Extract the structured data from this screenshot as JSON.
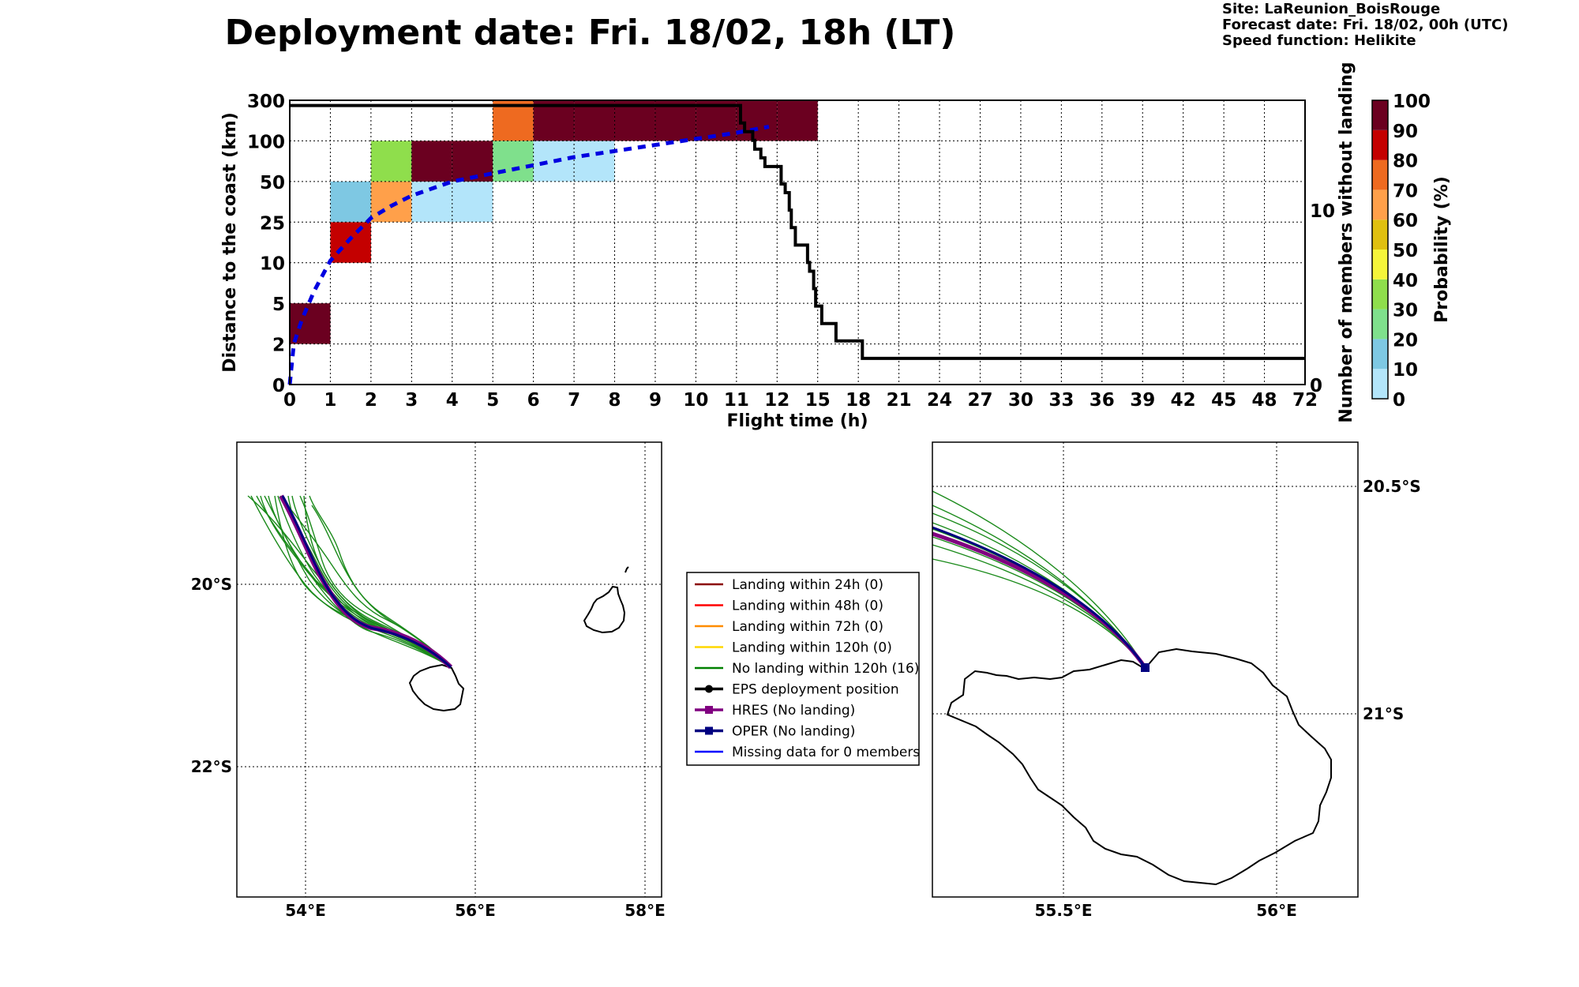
{
  "title": "Deployment date: Fri. 18/02, 18h (LT)",
  "site_info": {
    "site": "Site: LaReunion_BoisRouge",
    "forecast": "Forecast date: Fri. 18/02, 00h (UTC)",
    "speed": "Speed function: Helikite"
  },
  "chart_data": [
    {
      "type": "heatmap",
      "xlabel": "Flight time (h)",
      "ylabel": "Distance to the coast (km)",
      "y2label": "Number of members without landing",
      "x_ticks": [
        "0",
        "1",
        "2",
        "3",
        "4",
        "5",
        "6",
        "7",
        "8",
        "9",
        "10",
        "11",
        "12",
        "15",
        "18",
        "21",
        "24",
        "27",
        "30",
        "33",
        "36",
        "39",
        "42",
        "45",
        "48",
        "72"
      ],
      "y_ticks": [
        "0",
        "2",
        "5",
        "10",
        "25",
        "50",
        "100",
        "300"
      ],
      "y2_ticks": [
        {
          "label": "0",
          "value": 0
        },
        {
          "label": "10",
          "value": 10
        }
      ],
      "y2lim": [
        0,
        16.3
      ],
      "colorbar": {
        "label": "Probability (%)",
        "ticks": [
          "0",
          "10",
          "20",
          "30",
          "40",
          "50",
          "60",
          "70",
          "80",
          "90",
          "100"
        ],
        "colors": [
          "#b3e5fa",
          "#7ec8e3",
          "#7fe08c",
          "#8fde4c",
          "#f5f53a",
          "#e0c010",
          "#ffa04a",
          "#ee6a20",
          "#c40000",
          "#6b0020"
        ]
      },
      "cells": [
        {
          "x": 0,
          "y": 1,
          "color": "#6b0020"
        },
        {
          "x": 1,
          "y": 3,
          "color": "#c40000"
        },
        {
          "x": 1,
          "y": 4,
          "color": "#7ec8e3"
        },
        {
          "x": 2,
          "y": 4,
          "color": "#ffa04a"
        },
        {
          "x": 2,
          "y": 5,
          "color": "#8fde4c"
        },
        {
          "x": 3,
          "y": 4,
          "color": "#b3e5fa"
        },
        {
          "x": 4,
          "y": 4,
          "color": "#b3e5fa"
        },
        {
          "x": 3,
          "y": 5,
          "color": "#6b0020"
        },
        {
          "x": 4,
          "y": 5,
          "color": "#6b0020"
        },
        {
          "x": 5,
          "y": 5,
          "color": "#7fe08c"
        },
        {
          "x": 6,
          "y": 5,
          "color": "#b3e5fa"
        },
        {
          "x": 7,
          "y": 5,
          "color": "#b3e5fa"
        },
        {
          "x": 5,
          "y": 6,
          "color": "#ee6a20"
        },
        {
          "x": 6,
          "y": 6,
          "color": "#6b0020"
        },
        {
          "x": 7,
          "y": 6,
          "color": "#6b0020"
        },
        {
          "x": 8,
          "y": 6,
          "color": "#6b0020"
        },
        {
          "x": 9,
          "y": 6,
          "color": "#6b0020"
        },
        {
          "x": 10,
          "y": 6,
          "color": "#6b0020"
        },
        {
          "x": 11,
          "y": 6,
          "color": "#6b0020"
        },
        {
          "x": 12,
          "y": 6,
          "color": "#6b0020"
        }
      ],
      "members_without_landing": [
        [
          0,
          16
        ],
        [
          11,
          16
        ],
        [
          11.1,
          15
        ],
        [
          11.2,
          14.5
        ],
        [
          11.4,
          14
        ],
        [
          11.45,
          13.5
        ],
        [
          11.6,
          13
        ],
        [
          11.7,
          12.5
        ],
        [
          12.0,
          12.5
        ],
        [
          12.1,
          11.5
        ],
        [
          12.2,
          11
        ],
        [
          12.3,
          10
        ],
        [
          12.35,
          9
        ],
        [
          12.45,
          8
        ],
        [
          12.7,
          8
        ],
        [
          12.75,
          7
        ],
        [
          12.8,
          6.5
        ],
        [
          12.9,
          5.5
        ],
        [
          12.95,
          4.5
        ],
        [
          13.1,
          3.5
        ],
        [
          13.4,
          3.5
        ],
        [
          13.45,
          2.5
        ],
        [
          14.0,
          2.5
        ],
        [
          14.1,
          1.5
        ],
        [
          25,
          1.5
        ]
      ],
      "mean_distance": [
        [
          0,
          0
        ],
        [
          0.05,
          0.5
        ],
        [
          0.1,
          1
        ],
        [
          0.3,
          1.6
        ],
        [
          0.6,
          2.3
        ],
        [
          1,
          3.05
        ],
        [
          1.5,
          3.6
        ],
        [
          2,
          4.1
        ],
        [
          2.5,
          4.4
        ],
        [
          3,
          4.65
        ],
        [
          4,
          5.0
        ],
        [
          5,
          5.2
        ],
        [
          6,
          5.4
        ],
        [
          7,
          5.6
        ],
        [
          8,
          5.75
        ],
        [
          9,
          5.9
        ],
        [
          10,
          6.05
        ],
        [
          11,
          6.2
        ],
        [
          11.8,
          6.35
        ]
      ]
    }
  ],
  "legend": [
    {
      "label": "Landing within 24h (0)",
      "color": "#8b0000",
      "marker": "none"
    },
    {
      "label": "Landing within 48h (0)",
      "color": "#ff0000",
      "marker": "none"
    },
    {
      "label": "Landing within 72h (0)",
      "color": "#ff8c00",
      "marker": "none"
    },
    {
      "label": "Landing within 120h (0)",
      "color": "#ffd700",
      "marker": "none"
    },
    {
      "label": "No landing within 120h (16)",
      "color": "#008000",
      "marker": "none"
    },
    {
      "label": "EPS deployment position",
      "color": "#000000",
      "marker": "circle"
    },
    {
      "label": "HRES (No landing)",
      "color": "#800080",
      "marker": "square"
    },
    {
      "label": "OPER (No landing)",
      "color": "#000080",
      "marker": "square"
    },
    {
      "label": "Missing data for 0 members",
      "color": "#0000ff",
      "marker": "none"
    }
  ],
  "maps": {
    "left": {
      "x_ticks": [
        "54°E",
        "56°E",
        "58°E"
      ],
      "y_ticks": [
        "20°S",
        "22°S"
      ]
    },
    "right": {
      "x_ticks": [
        "55.5°E",
        "56°E"
      ],
      "y_ticks": [
        "20.5°S",
        "21°S"
      ]
    }
  }
}
